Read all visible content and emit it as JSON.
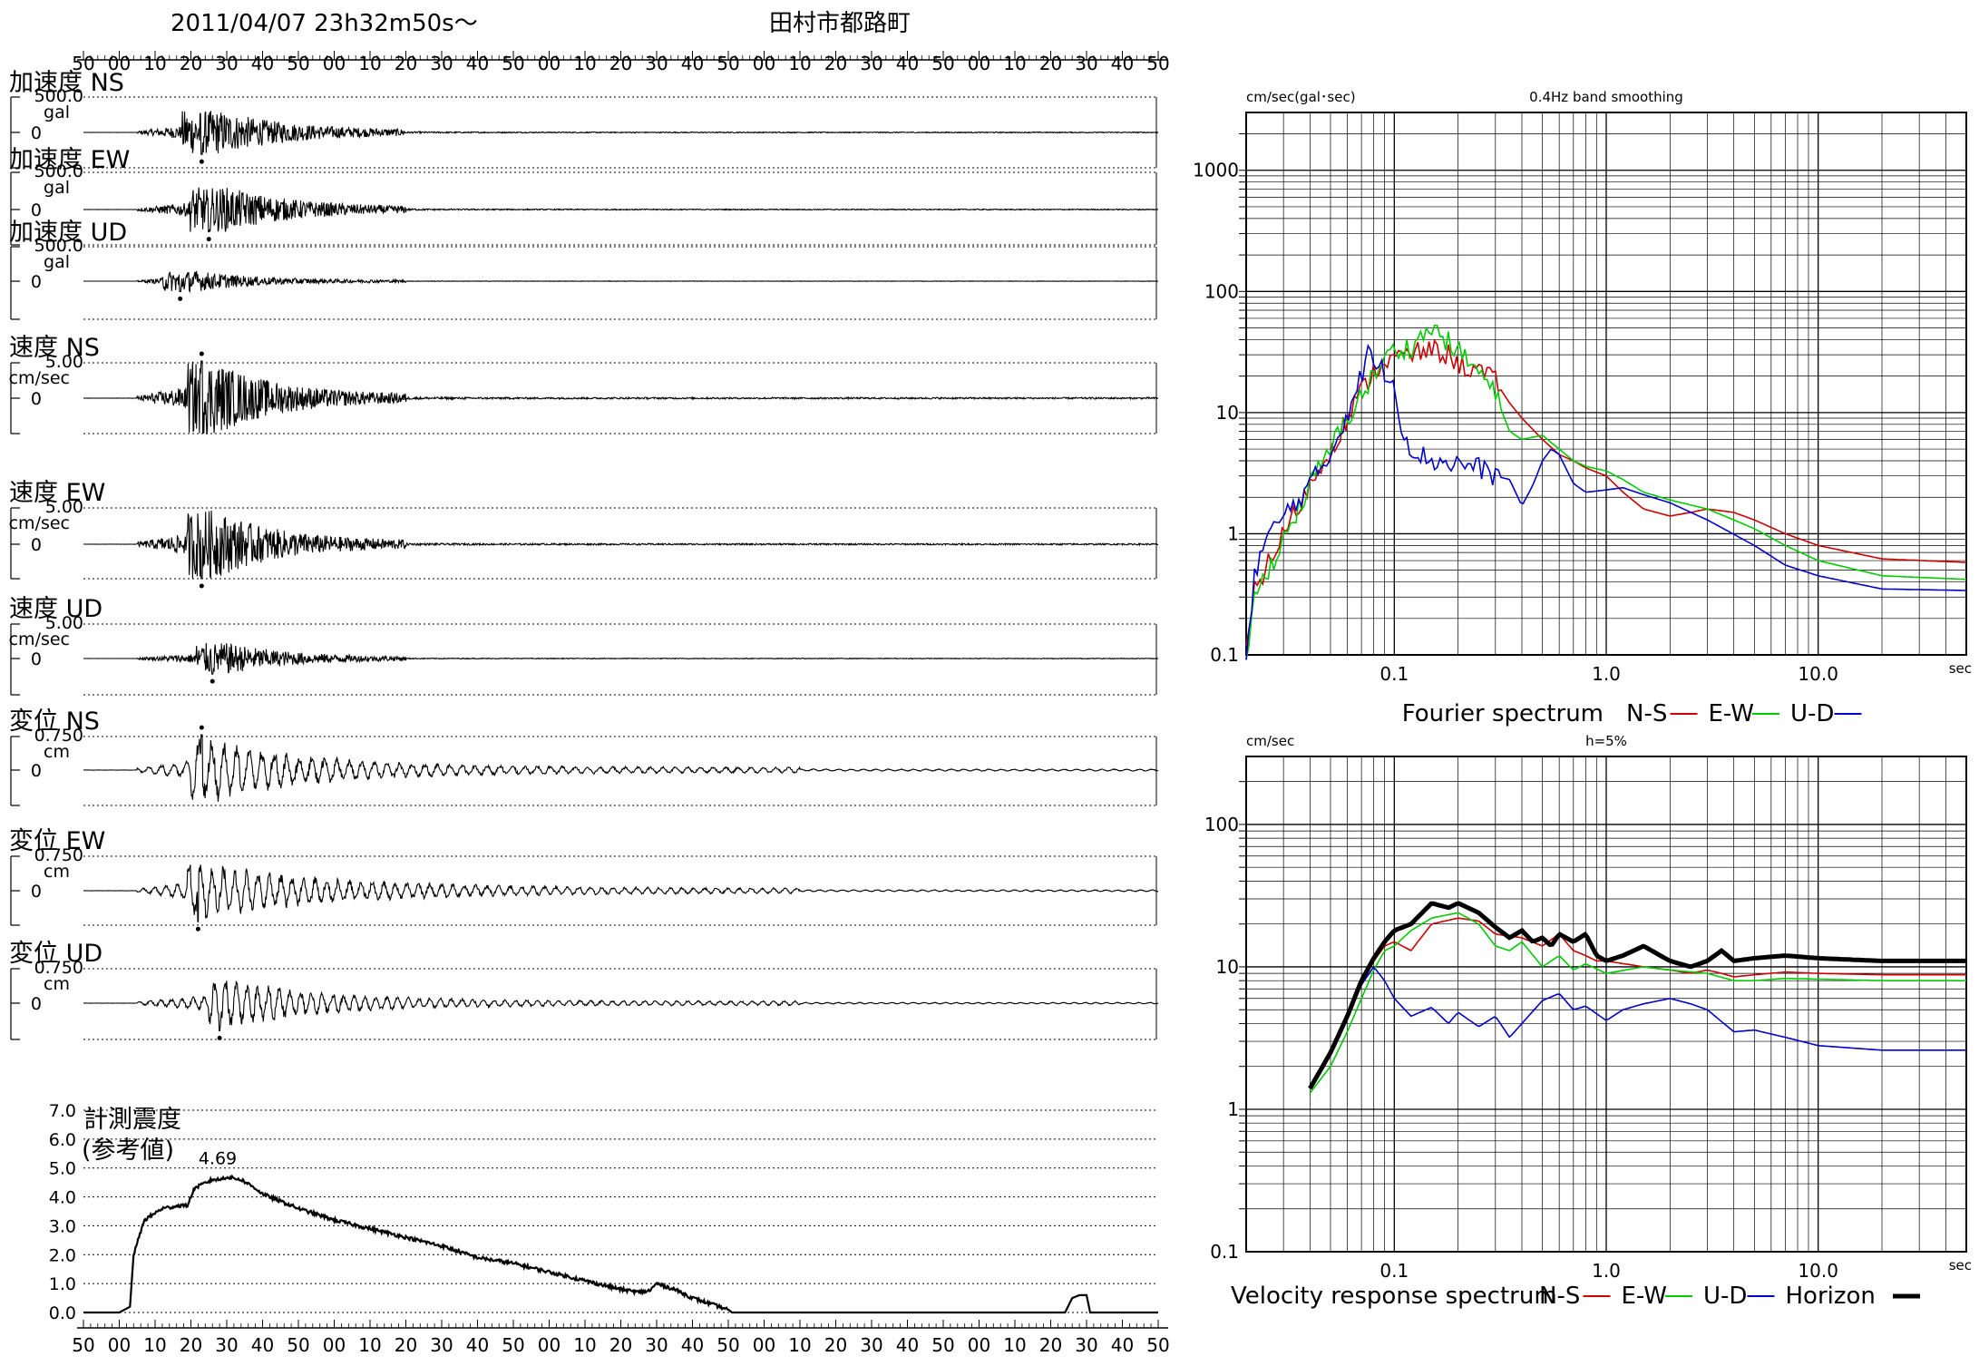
{
  "header": {
    "datetime": "2011/04/07  23h32m50s〜",
    "station": "田村市都路町"
  },
  "colors": {
    "ns": "#cc0000",
    "ew": "#00cc00",
    "ud": "#0000cc",
    "horizon": "#000000",
    "trace": "#000000"
  },
  "time_axis": {
    "top_labels": [
      "50",
      "00",
      "10",
      "20",
      "30",
      "40",
      "50",
      "00",
      "10",
      "20",
      "30",
      "40",
      "50",
      "00",
      "10",
      "20",
      "30",
      "40",
      "50",
      "00",
      "10",
      "20",
      "30",
      "40",
      "50",
      "00",
      "10",
      "20",
      "30",
      "40",
      "50"
    ],
    "bottom_labels": [
      "50",
      "00",
      "10",
      "20",
      "30",
      "40",
      "50",
      "00",
      "10",
      "20",
      "30",
      "40",
      "50",
      "00",
      "10",
      "20",
      "30",
      "40",
      "50",
      "00",
      "10",
      "20",
      "30",
      "40",
      "50",
      "00",
      "10",
      "20",
      "30",
      "40",
      "50"
    ]
  },
  "waveform_panels": [
    {
      "id": "acc-ns",
      "title": "加速度 NS",
      "scale": "500.0",
      "unit": "gal",
      "zero": "0",
      "peak_s": 33,
      "peak_dir": -1,
      "spread_s": 5.5,
      "rel_amp": 0.62,
      "decay_s": 20,
      "osc_period_s": 0.12
    },
    {
      "id": "acc-ew",
      "title": "加速度 EW",
      "scale": "500.0",
      "unit": "gal",
      "zero": "0",
      "peak_s": 35,
      "peak_dir": -1,
      "spread_s": 5.5,
      "rel_amp": 0.6,
      "decay_s": 20,
      "osc_period_s": 0.12
    },
    {
      "id": "acc-ud",
      "title": "加速度 UD",
      "scale": "500.0",
      "unit": "gal",
      "zero": "0",
      "peak_s": 27,
      "peak_dir": -1,
      "spread_s": 5,
      "rel_amp": 0.3,
      "decay_s": 18,
      "osc_period_s": 0.1
    },
    {
      "id": "vel-ns",
      "title": "速度 NS",
      "scale": "5.00",
      "unit": "cm/sec",
      "zero": "0",
      "peak_s": 33,
      "peak_dir": 1,
      "spread_s": 4,
      "rel_amp": 1.05,
      "decay_s": 18,
      "osc_period_s": 0.35
    },
    {
      "id": "vel-ew",
      "title": "速度 EW",
      "scale": "5.00",
      "unit": "cm/sec",
      "zero": "0",
      "peak_s": 33,
      "peak_dir": -1,
      "spread_s": 4,
      "rel_amp": 0.95,
      "decay_s": 18,
      "osc_period_s": 0.35
    },
    {
      "id": "vel-ud",
      "title": "速度 UD",
      "scale": "5.00",
      "unit": "cm/sec",
      "zero": "0",
      "peak_s": 36,
      "peak_dir": -1,
      "spread_s": 5,
      "rel_amp": 0.45,
      "decay_s": 18,
      "osc_period_s": 0.3
    },
    {
      "id": "dis-ns",
      "title": "変位 NS",
      "scale": "0.750",
      "unit": "cm",
      "zero": "0",
      "peak_s": 33,
      "peak_dir": 1,
      "spread_s": 3,
      "rel_amp": 1.05,
      "decay_s": 30,
      "osc_period_s": 3.5
    },
    {
      "id": "dis-ew",
      "title": "変位 EW",
      "scale": "0.750",
      "unit": "cm",
      "zero": "0",
      "peak_s": 32,
      "peak_dir": -1,
      "spread_s": 3,
      "rel_amp": 0.9,
      "decay_s": 38,
      "osc_period_s": 3.2
    },
    {
      "id": "dis-ud",
      "title": "変位 UD",
      "scale": "0.750",
      "unit": "cm",
      "zero": "0",
      "peak_s": 38,
      "peak_dir": -1,
      "spread_s": 3,
      "rel_amp": 0.8,
      "decay_s": 28,
      "osc_period_s": 3.0
    }
  ],
  "chart_data": [
    {
      "type": "line",
      "title": "計測震度 (参考値)",
      "title_lines": [
        "計測震度",
        "(参考値)"
      ],
      "annotation": "4.69",
      "peak_value": 4.69,
      "yticks": [
        "0.0",
        "1.0",
        "2.0",
        "3.0",
        "4.0",
        "5.0",
        "6.0",
        "7.0"
      ],
      "ylim": [
        0,
        7
      ],
      "x_seconds": [
        0,
        10,
        13,
        14,
        17,
        22,
        27,
        29,
        31,
        36,
        38,
        40,
        44,
        48,
        50,
        60,
        70,
        80,
        90,
        100,
        110,
        120,
        130,
        140,
        150,
        155,
        158,
        160,
        165,
        170,
        175,
        180,
        181,
        274,
        276,
        278,
        280,
        281,
        300
      ],
      "values": [
        0,
        0,
        0.2,
        2.0,
        3.2,
        3.6,
        3.7,
        3.7,
        4.3,
        4.6,
        4.6,
        4.69,
        4.6,
        4.3,
        4.1,
        3.6,
        3.2,
        2.9,
        2.6,
        2.3,
        1.9,
        1.7,
        1.4,
        1.1,
        0.8,
        0.7,
        0.75,
        1.0,
        0.8,
        0.5,
        0.3,
        0.1,
        0,
        0,
        0.5,
        0.6,
        0.6,
        0,
        0
      ]
    },
    {
      "type": "line",
      "title": "Fourier spectrum",
      "title_top": "0.4Hz band smoothing",
      "yunit": "cm/sec(gal･sec)",
      "xunit": "sec",
      "xscale": "log",
      "yscale": "log",
      "xlim": [
        0.02,
        50
      ],
      "ylim": [
        0.1,
        3000
      ],
      "xticks": [
        "0.1",
        "1.0",
        "10.0"
      ],
      "yticks": [
        "0.1",
        "1",
        "10",
        "100",
        "1000"
      ],
      "legend": [
        "N-S",
        "E-W",
        "U-D"
      ],
      "series": [
        {
          "name": "N-S",
          "x": [
            0.02,
            0.022,
            0.03,
            0.04,
            0.05,
            0.06,
            0.07,
            0.08,
            0.09,
            0.1,
            0.12,
            0.15,
            0.18,
            0.2,
            0.25,
            0.3,
            0.35,
            0.4,
            0.5,
            0.6,
            0.7,
            0.8,
            1.0,
            1.2,
            1.5,
            2.0,
            2.5,
            3.0,
            4.0,
            5.0,
            7.0,
            10.0,
            20.0,
            50.0
          ],
          "y": [
            0.1,
            0.35,
            1.0,
            2.5,
            5.0,
            9.0,
            15.0,
            22.0,
            26.0,
            28.0,
            30.0,
            33.0,
            30.0,
            25.0,
            22.0,
            18.0,
            12.0,
            9.0,
            6.0,
            4.5,
            4.0,
            3.5,
            3.0,
            2.2,
            1.6,
            1.4,
            1.5,
            1.6,
            1.5,
            1.3,
            1.0,
            0.8,
            0.62,
            0.58
          ]
        },
        {
          "name": "E-W",
          "x": [
            0.02,
            0.022,
            0.03,
            0.04,
            0.05,
            0.06,
            0.07,
            0.08,
            0.09,
            0.1,
            0.12,
            0.14,
            0.15,
            0.18,
            0.2,
            0.25,
            0.3,
            0.35,
            0.4,
            0.5,
            0.6,
            0.7,
            0.8,
            1.0,
            1.2,
            1.5,
            2.0,
            3.0,
            4.0,
            5.0,
            7.0,
            10.0,
            20.0,
            50.0
          ],
          "y": [
            0.1,
            0.3,
            0.9,
            2.5,
            5.0,
            9.0,
            14.0,
            20.0,
            28.0,
            32.0,
            35.0,
            45.0,
            50.0,
            38.0,
            32.0,
            22.0,
            14.0,
            7.0,
            6.0,
            6.5,
            5.0,
            4.0,
            3.6,
            3.3,
            2.8,
            2.2,
            1.9,
            1.6,
            1.3,
            1.1,
            0.8,
            0.6,
            0.45,
            0.42
          ]
        },
        {
          "name": "U-D",
          "x": [
            0.02,
            0.022,
            0.025,
            0.03,
            0.04,
            0.05,
            0.06,
            0.07,
            0.075,
            0.08,
            0.09,
            0.1,
            0.11,
            0.12,
            0.15,
            0.2,
            0.25,
            0.3,
            0.35,
            0.4,
            0.45,
            0.5,
            0.55,
            0.6,
            0.7,
            0.8,
            1.0,
            1.2,
            1.5,
            2.0,
            3.0,
            5.0,
            7.0,
            10.0,
            20.0,
            50.0
          ],
          "y": [
            0.1,
            0.5,
            0.9,
            1.4,
            2.5,
            4.5,
            10.0,
            20.0,
            32.0,
            25.0,
            22.0,
            17.0,
            7.0,
            5.0,
            4.0,
            3.8,
            3.5,
            3.0,
            2.8,
            1.7,
            2.5,
            4.0,
            5.0,
            4.5,
            2.6,
            2.2,
            2.3,
            2.4,
            2.1,
            1.8,
            1.3,
            0.8,
            0.55,
            0.45,
            0.35,
            0.34
          ]
        }
      ]
    },
    {
      "type": "line",
      "title": "Velocity response spectrum",
      "title_top": "h=5%",
      "yunit": "cm/sec",
      "xunit": "sec",
      "xscale": "log",
      "yscale": "log",
      "xlim": [
        0.02,
        50
      ],
      "ylim": [
        0.1,
        300
      ],
      "xticks": [
        "0.1",
        "1.0",
        "10.0"
      ],
      "yticks": [
        "0.1",
        "1",
        "10",
        "100"
      ],
      "legend": [
        "N-S",
        "E-W",
        "U-D",
        "Horizon"
      ],
      "series": [
        {
          "name": "N-S",
          "x": [
            0.04,
            0.05,
            0.06,
            0.07,
            0.08,
            0.09,
            0.1,
            0.12,
            0.15,
            0.2,
            0.25,
            0.3,
            0.4,
            0.5,
            0.6,
            0.7,
            0.8,
            0.9,
            1.0,
            1.5,
            2.0,
            2.5,
            3.0,
            3.5,
            4.0,
            5.0,
            7.0,
            10.0,
            20.0,
            50.0
          ],
          "y": [
            1.4,
            2.5,
            4.5,
            7.5,
            11.0,
            14.0,
            15.0,
            13.0,
            20.0,
            22.0,
            21.0,
            17.0,
            16.0,
            14.0,
            17.0,
            13.0,
            12.0,
            11.0,
            11.0,
            10.0,
            9.5,
            9.0,
            9.5,
            9.0,
            8.5,
            8.8,
            9.2,
            9.0,
            8.8,
            8.8
          ]
        },
        {
          "name": "E-W",
          "x": [
            0.04,
            0.05,
            0.06,
            0.07,
            0.08,
            0.09,
            0.1,
            0.12,
            0.15,
            0.2,
            0.25,
            0.3,
            0.35,
            0.4,
            0.5,
            0.6,
            0.7,
            0.8,
            1.0,
            1.5,
            2.0,
            3.0,
            4.0,
            5.0,
            7.0,
            10.0,
            20.0,
            50.0
          ],
          "y": [
            1.3,
            2.0,
            3.5,
            6.0,
            9.5,
            13.0,
            14.0,
            18.0,
            22.0,
            24.0,
            20.0,
            14.0,
            13.0,
            15.0,
            10.0,
            12.0,
            9.5,
            10.5,
            9.0,
            10.0,
            9.5,
            9.0,
            8.0,
            8.0,
            8.3,
            8.2,
            8.0,
            8.0
          ]
        },
        {
          "name": "U-D",
          "x": [
            0.04,
            0.05,
            0.06,
            0.07,
            0.08,
            0.09,
            0.1,
            0.12,
            0.15,
            0.18,
            0.2,
            0.25,
            0.3,
            0.35,
            0.4,
            0.5,
            0.6,
            0.7,
            0.8,
            1.0,
            1.2,
            1.5,
            2.0,
            2.5,
            3.0,
            4.0,
            5.0,
            7.0,
            10.0,
            20.0,
            50.0
          ],
          "y": [
            1.4,
            2.5,
            4.5,
            7.5,
            10.0,
            8.0,
            6.0,
            4.5,
            5.2,
            4.0,
            4.8,
            3.8,
            4.5,
            3.2,
            4.0,
            5.8,
            6.5,
            5.0,
            5.3,
            4.2,
            5.0,
            5.5,
            6.0,
            5.5,
            5.0,
            3.5,
            3.6,
            3.2,
            2.8,
            2.6,
            2.6
          ]
        },
        {
          "name": "Horizon",
          "x": [
            0.04,
            0.05,
            0.06,
            0.07,
            0.08,
            0.09,
            0.1,
            0.12,
            0.15,
            0.18,
            0.2,
            0.25,
            0.3,
            0.35,
            0.4,
            0.45,
            0.5,
            0.55,
            0.6,
            0.7,
            0.8,
            0.9,
            1.0,
            1.2,
            1.5,
            1.8,
            2.0,
            2.5,
            3.0,
            3.5,
            4.0,
            5.0,
            7.0,
            10.0,
            20.0,
            50.0
          ],
          "y": [
            1.4,
            2.5,
            4.5,
            8.0,
            11.5,
            15.0,
            18.0,
            20.0,
            28.0,
            26.0,
            28.0,
            24.0,
            19.0,
            16.0,
            18.0,
            15.0,
            16.0,
            14.0,
            17.0,
            15.0,
            17.0,
            12.0,
            11.0,
            12.0,
            14.0,
            12.0,
            11.0,
            10.0,
            11.0,
            13.0,
            11.0,
            11.5,
            12.0,
            11.5,
            11.0,
            11.0
          ]
        }
      ]
    }
  ]
}
